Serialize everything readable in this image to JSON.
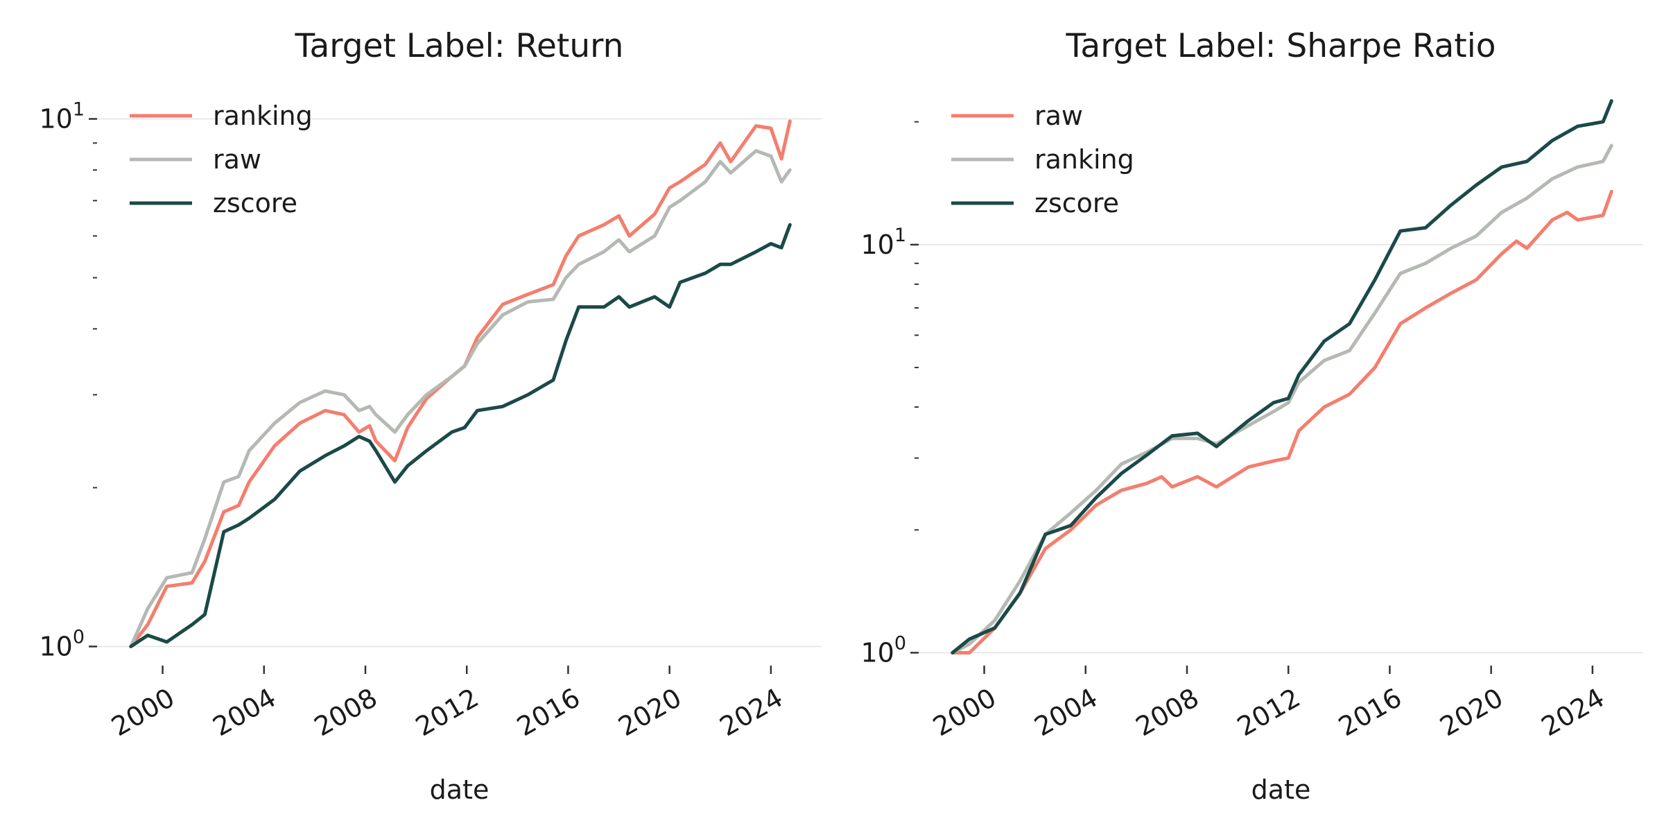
{
  "chart_data": [
    {
      "type": "line",
      "title": "Target Label: Return",
      "xlabel": "date",
      "ylabel": "",
      "yscale": "log",
      "ylim": [
        0.92,
        11
      ],
      "xlim": [
        "1997-06-01",
        "2026-01-01"
      ],
      "x_ticks": [
        "2000",
        "2004",
        "2008",
        "2012",
        "2016",
        "2020",
        "2024"
      ],
      "y_major_ticks": [
        {
          "value": 1,
          "base": "10",
          "exp": "0"
        },
        {
          "value": 10,
          "base": "10",
          "exp": "1"
        }
      ],
      "grid": "horizontal major",
      "legend": "top-left",
      "series": [
        {
          "name": "ranking",
          "color": "#F47E6E",
          "points": [
            [
              "1998-10-01",
              1.0
            ],
            [
              "1999-06-01",
              1.1
            ],
            [
              "2000-03-01",
              1.3
            ],
            [
              "2001-03-01",
              1.32
            ],
            [
              "2001-09-01",
              1.45
            ],
            [
              "2002-06-01",
              1.8
            ],
            [
              "2003-01-01",
              1.85
            ],
            [
              "2003-06-01",
              2.05
            ],
            [
              "2004-06-01",
              2.4
            ],
            [
              "2005-06-01",
              2.65
            ],
            [
              "2006-06-01",
              2.8
            ],
            [
              "2007-03-01",
              2.75
            ],
            [
              "2007-10-01",
              2.55
            ],
            [
              "2008-03-01",
              2.62
            ],
            [
              "2008-06-01",
              2.45
            ],
            [
              "2009-03-01",
              2.25
            ],
            [
              "2009-09-01",
              2.6
            ],
            [
              "2010-06-01",
              2.95
            ],
            [
              "2011-06-01",
              3.25
            ],
            [
              "2011-12-01",
              3.4
            ],
            [
              "2012-06-01",
              3.85
            ],
            [
              "2013-06-01",
              4.45
            ],
            [
              "2014-06-01",
              4.65
            ],
            [
              "2015-06-01",
              4.85
            ],
            [
              "2015-12-01",
              5.5
            ],
            [
              "2016-06-01",
              6.0
            ],
            [
              "2017-06-01",
              6.3
            ],
            [
              "2018-01-01",
              6.55
            ],
            [
              "2018-06-01",
              6.0
            ],
            [
              "2019-06-01",
              6.6
            ],
            [
              "2020-01-01",
              7.4
            ],
            [
              "2020-06-01",
              7.6
            ],
            [
              "2021-06-01",
              8.2
            ],
            [
              "2022-01-01",
              9.0
            ],
            [
              "2022-06-01",
              8.3
            ],
            [
              "2023-06-01",
              9.7
            ],
            [
              "2024-01-01",
              9.6
            ],
            [
              "2024-06-01",
              8.4
            ],
            [
              "2024-10-01",
              9.9
            ]
          ]
        },
        {
          "name": "raw",
          "color": "#B4B9B3",
          "points": [
            [
              "1998-10-01",
              1.0
            ],
            [
              "1999-06-01",
              1.18
            ],
            [
              "2000-03-01",
              1.35
            ],
            [
              "2001-03-01",
              1.38
            ],
            [
              "2001-09-01",
              1.6
            ],
            [
              "2002-06-01",
              2.05
            ],
            [
              "2003-01-01",
              2.1
            ],
            [
              "2003-06-01",
              2.35
            ],
            [
              "2004-06-01",
              2.65
            ],
            [
              "2005-06-01",
              2.9
            ],
            [
              "2006-06-01",
              3.05
            ],
            [
              "2007-03-01",
              3.0
            ],
            [
              "2007-10-01",
              2.8
            ],
            [
              "2008-03-01",
              2.85
            ],
            [
              "2008-06-01",
              2.75
            ],
            [
              "2009-03-01",
              2.55
            ],
            [
              "2009-09-01",
              2.75
            ],
            [
              "2010-06-01",
              3.0
            ],
            [
              "2011-06-01",
              3.25
            ],
            [
              "2011-12-01",
              3.4
            ],
            [
              "2012-06-01",
              3.75
            ],
            [
              "2013-06-01",
              4.25
            ],
            [
              "2014-06-01",
              4.5
            ],
            [
              "2015-06-01",
              4.55
            ],
            [
              "2015-12-01",
              5.0
            ],
            [
              "2016-06-01",
              5.3
            ],
            [
              "2017-06-01",
              5.6
            ],
            [
              "2018-01-01",
              5.9
            ],
            [
              "2018-06-01",
              5.6
            ],
            [
              "2019-06-01",
              6.0
            ],
            [
              "2020-01-01",
              6.8
            ],
            [
              "2020-06-01",
              7.0
            ],
            [
              "2021-06-01",
              7.6
            ],
            [
              "2022-01-01",
              8.3
            ],
            [
              "2022-06-01",
              7.9
            ],
            [
              "2023-06-01",
              8.7
            ],
            [
              "2024-01-01",
              8.5
            ],
            [
              "2024-06-01",
              7.6
            ],
            [
              "2024-10-01",
              8.0
            ]
          ]
        },
        {
          "name": "zscore",
          "color": "#1B4A47",
          "points": [
            [
              "1998-10-01",
              1.0
            ],
            [
              "1999-06-01",
              1.05
            ],
            [
              "2000-03-01",
              1.02
            ],
            [
              "2001-03-01",
              1.1
            ],
            [
              "2001-09-01",
              1.15
            ],
            [
              "2002-06-01",
              1.65
            ],
            [
              "2003-01-01",
              1.7
            ],
            [
              "2003-06-01",
              1.75
            ],
            [
              "2004-06-01",
              1.9
            ],
            [
              "2005-06-01",
              2.15
            ],
            [
              "2006-06-01",
              2.3
            ],
            [
              "2007-03-01",
              2.4
            ],
            [
              "2007-10-01",
              2.5
            ],
            [
              "2008-03-01",
              2.45
            ],
            [
              "2008-06-01",
              2.35
            ],
            [
              "2009-03-01",
              2.05
            ],
            [
              "2009-09-01",
              2.2
            ],
            [
              "2010-06-01",
              2.35
            ],
            [
              "2011-06-01",
              2.55
            ],
            [
              "2011-12-01",
              2.6
            ],
            [
              "2012-06-01",
              2.8
            ],
            [
              "2013-06-01",
              2.85
            ],
            [
              "2014-06-01",
              3.0
            ],
            [
              "2015-06-01",
              3.2
            ],
            [
              "2015-12-01",
              3.8
            ],
            [
              "2016-06-01",
              4.4
            ],
            [
              "2017-06-01",
              4.4
            ],
            [
              "2018-01-01",
              4.6
            ],
            [
              "2018-06-01",
              4.4
            ],
            [
              "2019-06-01",
              4.6
            ],
            [
              "2020-01-01",
              4.4
            ],
            [
              "2020-06-01",
              4.9
            ],
            [
              "2021-06-01",
              5.1
            ],
            [
              "2022-01-01",
              5.3
            ],
            [
              "2022-06-01",
              5.3
            ],
            [
              "2023-06-01",
              5.6
            ],
            [
              "2024-01-01",
              5.8
            ],
            [
              "2024-06-01",
              5.7
            ],
            [
              "2024-10-01",
              6.3
            ]
          ]
        }
      ]
    },
    {
      "type": "line",
      "title": "Target Label: Sharpe Ratio",
      "xlabel": "date",
      "ylabel": "",
      "yscale": "log",
      "ylim": [
        0.93,
        23
      ],
      "xlim": [
        "1997-06-01",
        "2026-01-01"
      ],
      "x_ticks": [
        "2000",
        "2004",
        "2008",
        "2012",
        "2016",
        "2020",
        "2024"
      ],
      "y_major_ticks": [
        {
          "value": 1,
          "base": "10",
          "exp": "0"
        },
        {
          "value": 10,
          "base": "10",
          "exp": "1"
        }
      ],
      "grid": "horizontal major",
      "legend": "top-left",
      "series": [
        {
          "name": "raw",
          "color": "#F47E6E",
          "points": [
            [
              "1998-10-01",
              1.0
            ],
            [
              "1999-06-01",
              1.0
            ],
            [
              "2000-06-01",
              1.15
            ],
            [
              "2001-06-01",
              1.4
            ],
            [
              "2002-06-01",
              1.8
            ],
            [
              "2003-06-01",
              2.0
            ],
            [
              "2004-06-01",
              2.3
            ],
            [
              "2005-06-01",
              2.5
            ],
            [
              "2006-06-01",
              2.6
            ],
            [
              "2007-01-01",
              2.7
            ],
            [
              "2007-06-01",
              2.55
            ],
            [
              "2008-06-01",
              2.7
            ],
            [
              "2009-03-01",
              2.55
            ],
            [
              "2010-06-01",
              2.85
            ],
            [
              "2011-06-01",
              2.95
            ],
            [
              "2012-01-01",
              3.0
            ],
            [
              "2012-06-01",
              3.5
            ],
            [
              "2013-06-01",
              4.0
            ],
            [
              "2014-06-01",
              4.3
            ],
            [
              "2015-06-01",
              5.0
            ],
            [
              "2016-06-01",
              6.4
            ],
            [
              "2017-06-01",
              7.0
            ],
            [
              "2018-06-01",
              7.6
            ],
            [
              "2019-06-01",
              8.2
            ],
            [
              "2020-06-01",
              9.5
            ],
            [
              "2021-01-01",
              10.2
            ],
            [
              "2021-06-01",
              9.8
            ],
            [
              "2022-06-01",
              11.5
            ],
            [
              "2023-01-01",
              12.0
            ],
            [
              "2023-06-01",
              11.5
            ],
            [
              "2024-06-01",
              11.8
            ],
            [
              "2024-10-01",
              13.5
            ]
          ]
        },
        {
          "name": "ranking",
          "color": "#B4B9B3",
          "points": [
            [
              "1998-10-01",
              1.0
            ],
            [
              "1999-06-01",
              1.05
            ],
            [
              "2000-06-01",
              1.2
            ],
            [
              "2001-06-01",
              1.5
            ],
            [
              "2002-06-01",
              1.95
            ],
            [
              "2003-06-01",
              2.2
            ],
            [
              "2004-06-01",
              2.5
            ],
            [
              "2005-06-01",
              2.9
            ],
            [
              "2006-06-01",
              3.1
            ],
            [
              "2007-06-01",
              3.35
            ],
            [
              "2008-06-01",
              3.35
            ],
            [
              "2009-03-01",
              3.25
            ],
            [
              "2010-06-01",
              3.6
            ],
            [
              "2011-06-01",
              3.9
            ],
            [
              "2012-01-01",
              4.1
            ],
            [
              "2012-06-01",
              4.6
            ],
            [
              "2013-06-01",
              5.2
            ],
            [
              "2014-06-01",
              5.5
            ],
            [
              "2015-06-01",
              6.8
            ],
            [
              "2016-06-01",
              8.5
            ],
            [
              "2017-06-01",
              9.0
            ],
            [
              "2018-06-01",
              9.8
            ],
            [
              "2019-06-01",
              10.5
            ],
            [
              "2020-06-01",
              12.0
            ],
            [
              "2021-06-01",
              13.0
            ],
            [
              "2022-06-01",
              14.5
            ],
            [
              "2023-06-01",
              15.5
            ],
            [
              "2024-06-01",
              16.0
            ],
            [
              "2024-10-01",
              17.5
            ]
          ]
        },
        {
          "name": "zscore",
          "color": "#1B4A47",
          "points": [
            [
              "1998-10-01",
              1.0
            ],
            [
              "1999-06-01",
              1.08
            ],
            [
              "2000-06-01",
              1.15
            ],
            [
              "2001-06-01",
              1.4
            ],
            [
              "2002-06-01",
              1.95
            ],
            [
              "2003-06-01",
              2.05
            ],
            [
              "2004-06-01",
              2.4
            ],
            [
              "2005-06-01",
              2.75
            ],
            [
              "2006-06-01",
              3.05
            ],
            [
              "2007-06-01",
              3.4
            ],
            [
              "2008-06-01",
              3.45
            ],
            [
              "2009-03-01",
              3.2
            ],
            [
              "2010-06-01",
              3.7
            ],
            [
              "2011-06-01",
              4.1
            ],
            [
              "2012-01-01",
              4.2
            ],
            [
              "2012-06-01",
              4.8
            ],
            [
              "2013-06-01",
              5.8
            ],
            [
              "2014-06-01",
              6.4
            ],
            [
              "2015-06-01",
              8.2
            ],
            [
              "2016-06-01",
              10.8
            ],
            [
              "2017-06-01",
              11.0
            ],
            [
              "2018-06-01",
              12.5
            ],
            [
              "2019-06-01",
              14.0
            ],
            [
              "2020-06-01",
              15.5
            ],
            [
              "2021-06-01",
              16.0
            ],
            [
              "2022-06-01",
              18.0
            ],
            [
              "2023-06-01",
              19.5
            ],
            [
              "2024-06-01",
              20.0
            ],
            [
              "2024-10-01",
              22.5
            ]
          ]
        }
      ]
    }
  ]
}
